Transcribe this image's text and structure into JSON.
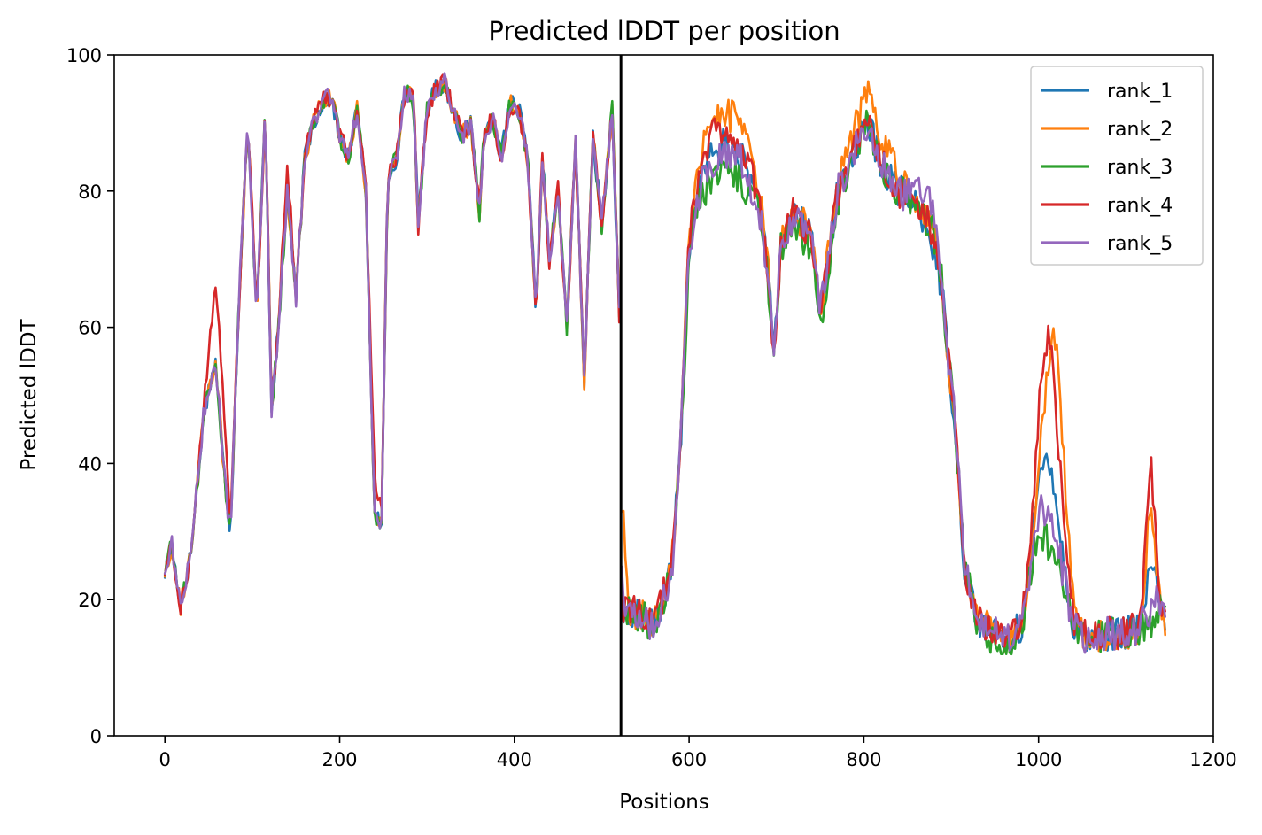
{
  "chart_data": {
    "type": "line",
    "title": "Predicted lDDT per position",
    "xlabel": "Positions",
    "ylabel": "Predicted lDDT",
    "xlim": [
      -58,
      1200
    ],
    "ylim": [
      0,
      100
    ],
    "xticks": [
      0,
      200,
      400,
      600,
      800,
      1000,
      1200
    ],
    "yticks": [
      0,
      20,
      40,
      60,
      80,
      100
    ],
    "xtick_labels": [
      "0",
      "200",
      "400",
      "600",
      "800",
      "1000",
      "1200"
    ],
    "ytick_labels": [
      "0",
      "20",
      "40",
      "60",
      "80",
      "100"
    ],
    "grid": false,
    "legend_position": "top-right",
    "vertical_line_x": 522,
    "vertical_line_color": "#000000",
    "base_profile": {
      "x": [
        0,
        8,
        18,
        30,
        45,
        58,
        68,
        75,
        85,
        95,
        105,
        115,
        122,
        130,
        140,
        150,
        160,
        170,
        180,
        190,
        200,
        210,
        220,
        230,
        240,
        248,
        255,
        265,
        275,
        285,
        290,
        300,
        310,
        320,
        330,
        340,
        350,
        360,
        365,
        375,
        385,
        395,
        405,
        415,
        425,
        432,
        440,
        450,
        460,
        470,
        480,
        490,
        500,
        512,
        520,
        522,
        525,
        540,
        560,
        580,
        590,
        600,
        610,
        620,
        640,
        660,
        680,
        690,
        697,
        705,
        720,
        730,
        740,
        750,
        770,
        790,
        805,
        820,
        840,
        860,
        880,
        890,
        895,
        905,
        915,
        930,
        950,
        965,
        980,
        990,
        1000,
        1012,
        1025,
        1040,
        1060,
        1080,
        1100,
        1115,
        1125,
        1135,
        1145
      ],
      "y": [
        24,
        28,
        19,
        27,
        48,
        55,
        38,
        30,
        65,
        90,
        62,
        92,
        48,
        60,
        80,
        64,
        85,
        90,
        93,
        94,
        88,
        85,
        92,
        80,
        32,
        31,
        82,
        85,
        95,
        93,
        75,
        92,
        95,
        96,
        92,
        88,
        90,
        77,
        88,
        91,
        85,
        93,
        92,
        85,
        62,
        85,
        70,
        80,
        60,
        87,
        52,
        88,
        75,
        92,
        62,
        25,
        18,
        18,
        16,
        24,
        42,
        72,
        80,
        84,
        87,
        85,
        78,
        68,
        56,
        72,
        77,
        75,
        74,
        62,
        80,
        86,
        90,
        84,
        80,
        78,
        74,
        66,
        58,
        45,
        25,
        17,
        15,
        14,
        16,
        24,
        32,
        30,
        25,
        16,
        14,
        15,
        15,
        16,
        18,
        20,
        17
      ]
    },
    "series": [
      {
        "name": "rank_1",
        "color": "#1f77b4"
      },
      {
        "name": "rank_2",
        "color": "#ff7f0e"
      },
      {
        "name": "rank_3",
        "color": "#2ca02c"
      },
      {
        "name": "rank_4",
        "color": "#d62728"
      },
      {
        "name": "rank_5",
        "color": "#9467bd"
      }
    ]
  }
}
